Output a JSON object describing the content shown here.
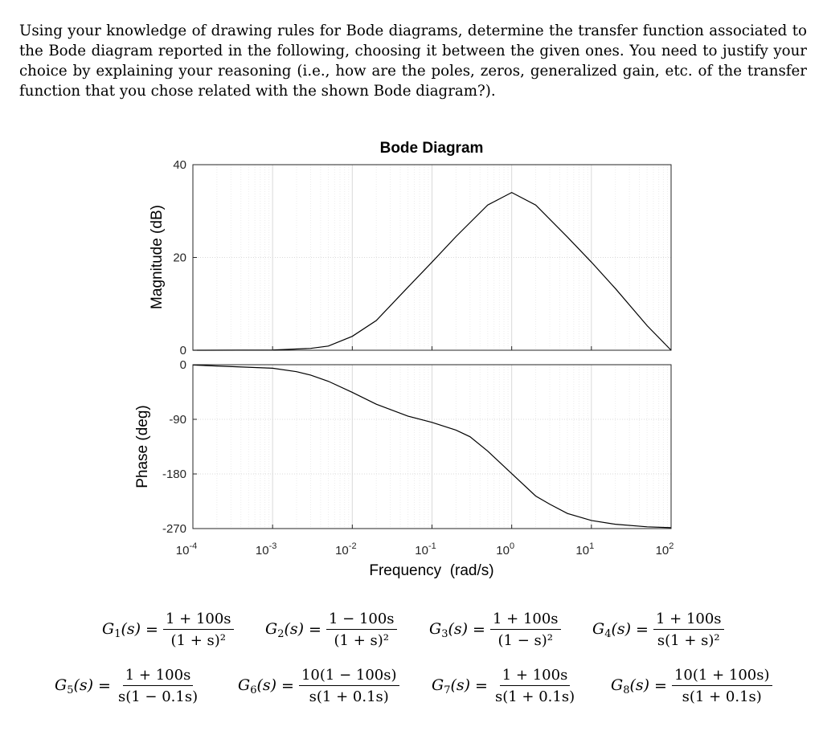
{
  "question_text": "Using your knowledge of drawing rules for Bode diagrams, determine the transfer function associated to the Bode diagram reported in the following, choosing it between the given ones. You need to justify your choice by explaining your reasoning (i.e., how are the poles, zeros, generalized gain, etc. of the transfer function that you chose related with the shown Bode diagram?).",
  "chart_data": {
    "type": "line",
    "title": "Bode Diagram",
    "xlabel": "Frequency  (rad/s)",
    "x_scale": "log",
    "xlim": [
      0.0001,
      100
    ],
    "x_ticks": [
      {
        "base": "10",
        "exp": "-4"
      },
      {
        "base": "10",
        "exp": "-3"
      },
      {
        "base": "10",
        "exp": "-2"
      },
      {
        "base": "10",
        "exp": "-1"
      },
      {
        "base": "10",
        "exp": "0"
      },
      {
        "base": "10",
        "exp": "1"
      },
      {
        "base": "10",
        "exp": "2"
      }
    ],
    "grid": true,
    "magnitude": {
      "ylabel": "Magnitude (dB)",
      "ylim": [
        0,
        40
      ],
      "y_ticks": [
        "40",
        "20",
        "0"
      ],
      "x": [
        0.0001,
        0.001,
        0.003,
        0.005,
        0.01,
        0.02,
        0.05,
        0.1,
        0.2,
        0.5,
        1,
        2,
        5,
        10,
        20,
        50,
        100
      ],
      "y": [
        0.0,
        0.04,
        0.4,
        0.9,
        3.0,
        6.4,
        13.6,
        19.0,
        24.5,
        31.3,
        34.0,
        31.3,
        24.4,
        19.0,
        13.3,
        5.3,
        0.0
      ]
    },
    "phase": {
      "ylabel": "Phase (deg)",
      "ylim": [
        -270,
        0
      ],
      "y_ticks": [
        "0",
        "-90",
        "-180",
        "-270"
      ],
      "x": [
        0.0001,
        0.001,
        0.002,
        0.003,
        0.005,
        0.01,
        0.02,
        0.05,
        0.1,
        0.2,
        0.3,
        0.5,
        1,
        2,
        3,
        5,
        10,
        20,
        50,
        100
      ],
      "y": [
        -0.6,
        -5.8,
        -11.5,
        -17.1,
        -27.3,
        -45.6,
        -65.1,
        -84.8,
        -95.1,
        -107.8,
        -118.7,
        -142.3,
        -179.4,
        -216.4,
        -229.8,
        -245.1,
        -256.7,
        -262.9,
        -267.1,
        -268.5
      ]
    }
  },
  "options": [
    {
      "name": "G",
      "sub": "1",
      "num": "1 + 100s",
      "den": "(1 + s)²"
    },
    {
      "name": "G",
      "sub": "2",
      "num": "1 − 100s",
      "den": "(1 + s)²"
    },
    {
      "name": "G",
      "sub": "3",
      "num": "1 + 100s",
      "den": "(1 − s)²"
    },
    {
      "name": "G",
      "sub": "4",
      "num": "1 + 100s",
      "den": "s(1 + s)²"
    },
    {
      "name": "G",
      "sub": "5",
      "num": "1 + 100s",
      "den": "s(1 − 0.1s)"
    },
    {
      "name": "G",
      "sub": "6",
      "num": "10(1 − 100s)",
      "den": "s(1 + 0.1s)"
    },
    {
      "name": "G",
      "sub": "7",
      "num": "1 + 100s",
      "den": "s(1 + 0.1s)"
    },
    {
      "name": "G",
      "sub": "8",
      "num": "10(1 + 100s)",
      "den": "s(1 + 0.1s)"
    }
  ]
}
